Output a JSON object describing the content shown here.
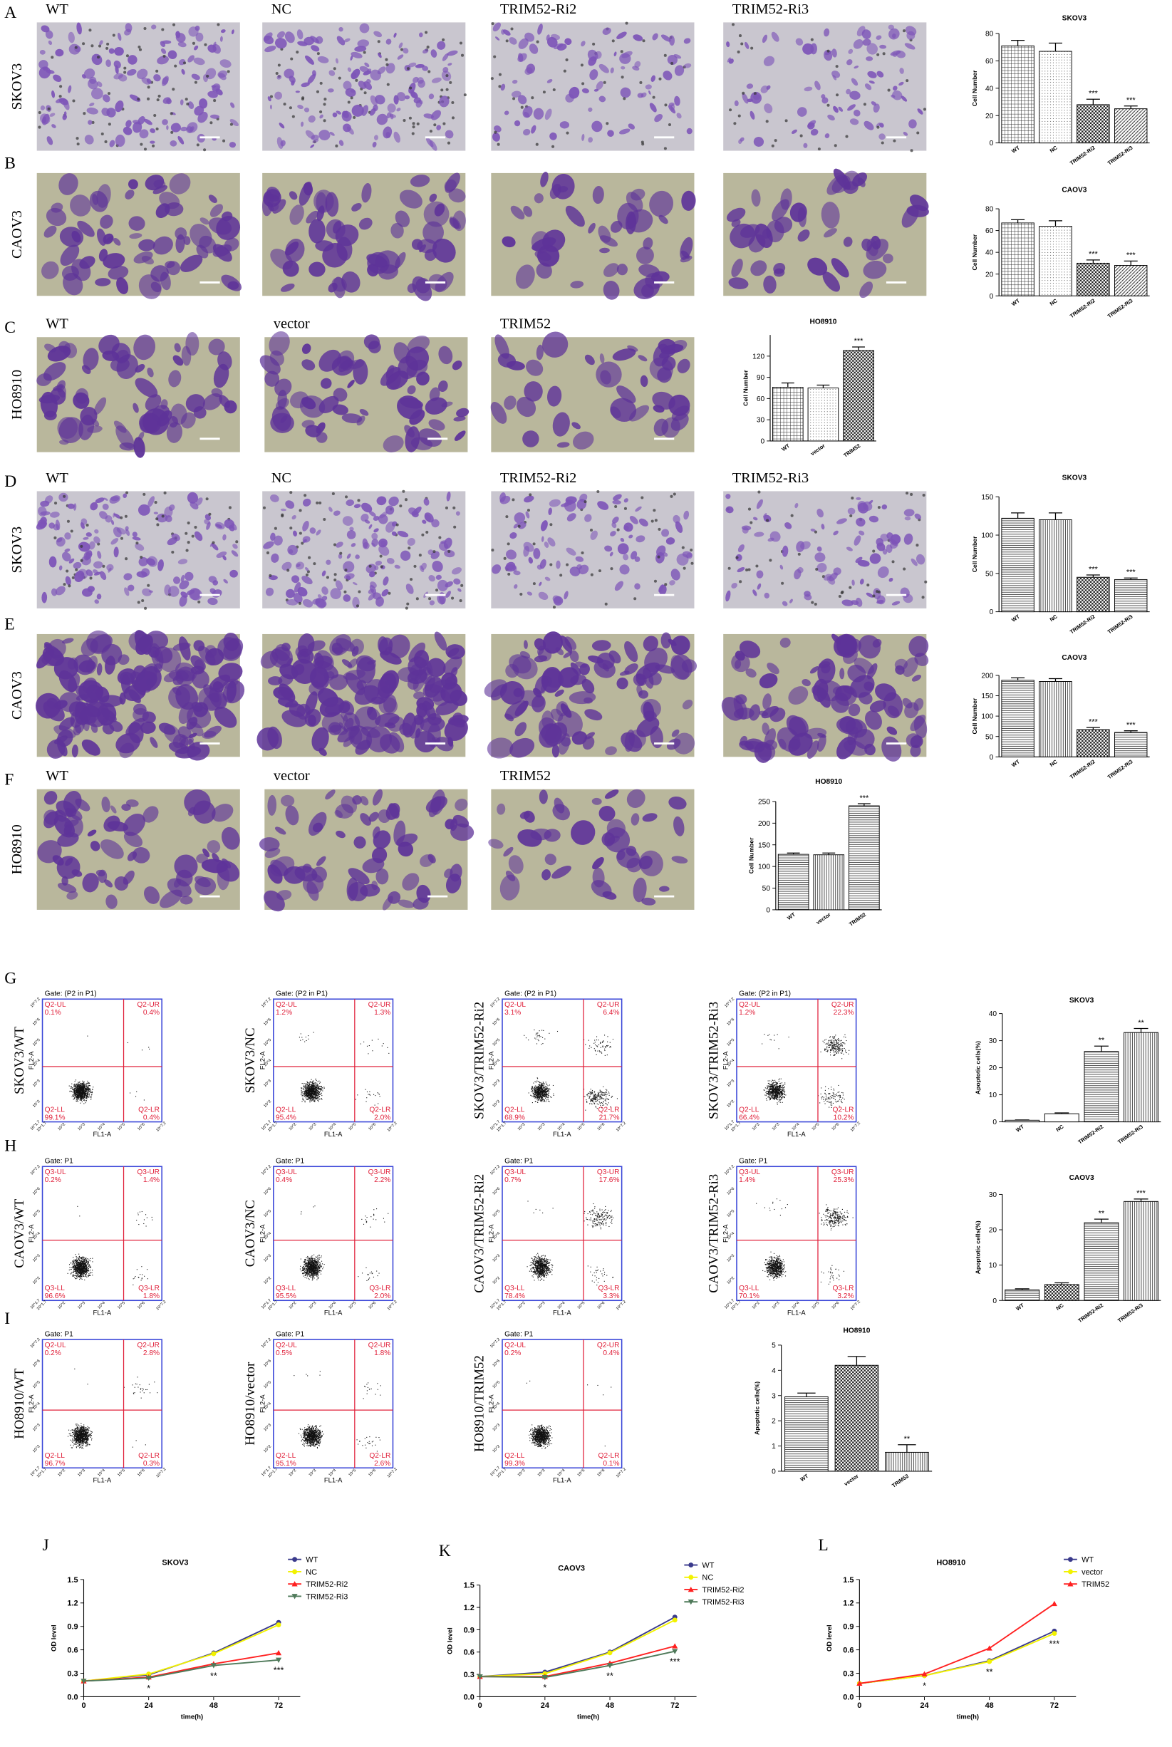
{
  "image_rows": [
    {
      "panel": "A",
      "cell_line": "SKOV3",
      "conditions": [
        "WT",
        "NC",
        "TRIM52-Ri2",
        "TRIM52-Ri3"
      ]
    },
    {
      "panel": "B",
      "cell_line": "CAOV3",
      "conditions": [
        null,
        null,
        null,
        null
      ]
    },
    {
      "panel": "C",
      "cell_line": "HO8910",
      "conditions": [
        "WT",
        "vector",
        "TRIM52"
      ]
    },
    {
      "panel": "D",
      "cell_line": "SKOV3",
      "conditions": [
        "WT",
        "NC",
        "TRIM52-Ri2",
        "TRIM52-Ri3"
      ]
    },
    {
      "panel": "E",
      "cell_line": "CAOV3",
      "conditions": [
        null,
        null,
        null,
        null
      ]
    },
    {
      "panel": "F",
      "cell_line": "HO8910",
      "conditions": [
        "WT",
        "vector",
        "TRIM52"
      ]
    }
  ],
  "flow_axis_ticks": [
    "10^1.7",
    "10^2",
    "10^3",
    "10^4",
    "10^5",
    "10^6",
    "10^7.2"
  ],
  "flow_x_label": "FL1-A",
  "flow_y_label": "FL2-A",
  "flow_rows": [
    {
      "panel": "G",
      "plots": [
        {
          "label": "SKOV3/WT",
          "gate": "Gate: (P2 in P1)",
          "quadrants": [
            [
              "Q2-UL",
              "0.1%"
            ],
            [
              "Q2-UR",
              "0.4%"
            ],
            [
              "Q2-LL",
              "99.1%"
            ],
            [
              "Q2-LR",
              "0.4%"
            ]
          ]
        },
        {
          "label": "SKOV3/NC",
          "gate": "Gate: (P2 in P1)",
          "quadrants": [
            [
              "Q2-UL",
              "1.2%"
            ],
            [
              "Q2-UR",
              "1.3%"
            ],
            [
              "Q2-LL",
              "95.4%"
            ],
            [
              "Q2-LR",
              "2.0%"
            ]
          ]
        },
        {
          "label": "SKOV3/TRIM52-Ri2",
          "gate": "Gate: (P2 in P1)",
          "quadrants": [
            [
              "Q2-UL",
              "3.1%"
            ],
            [
              "Q2-UR",
              "6.4%"
            ],
            [
              "Q2-LL",
              "68.9%"
            ],
            [
              "Q2-LR",
              "21.7%"
            ]
          ]
        },
        {
          "label": "SKOV3/TRIM52-Ri3",
          "gate": "Gate: (P2 in P1)",
          "quadrants": [
            [
              "Q2-UL",
              "1.2%"
            ],
            [
              "Q2-UR",
              "22.3%"
            ],
            [
              "Q2-LL",
              "66.4%"
            ],
            [
              "Q2-LR",
              "10.2%"
            ]
          ]
        }
      ]
    },
    {
      "panel": "H",
      "plots": [
        {
          "label": "CAOV3/WT",
          "gate": "Gate: P1",
          "quadrants": [
            [
              "Q3-UL",
              "0.2%"
            ],
            [
              "Q3-UR",
              "1.4%"
            ],
            [
              "Q3-LL",
              "96.6%"
            ],
            [
              "Q3-LR",
              "1.8%"
            ]
          ]
        },
        {
          "label": "CAOV3/NC",
          "gate": "Gate: P1",
          "quadrants": [
            [
              "Q3-UL",
              "0.4%"
            ],
            [
              "Q3-UR",
              "2.2%"
            ],
            [
              "Q3-LL",
              "95.5%"
            ],
            [
              "Q3-LR",
              "2.0%"
            ]
          ]
        },
        {
          "label": "CAOV3/TRIM52-Ri2",
          "gate": "Gate: P1",
          "quadrants": [
            [
              "Q3-UL",
              "0.7%"
            ],
            [
              "Q3-UR",
              "17.6%"
            ],
            [
              "Q3-LL",
              "78.4%"
            ],
            [
              "Q3-LR",
              "3.3%"
            ]
          ]
        },
        {
          "label": "CAOV3/TRIM52-Ri3",
          "gate": "Gate: P1",
          "quadrants": [
            [
              "Q3-UL",
              "1.4%"
            ],
            [
              "Q3-UR",
              "25.3%"
            ],
            [
              "Q3-LL",
              "70.1%"
            ],
            [
              "Q3-LR",
              "3.2%"
            ]
          ]
        }
      ]
    },
    {
      "panel": "I",
      "plots": [
        {
          "label": "HO8910/WT",
          "gate": "Gate:  P1",
          "quadrants": [
            [
              "Q2-UL",
              "0.2%"
            ],
            [
              "Q2-UR",
              "2.8%"
            ],
            [
              "Q2-LL",
              "96.7%"
            ],
            [
              "Q2-LR",
              "0.3%"
            ]
          ]
        },
        {
          "label": "HO8910/vector",
          "gate": "Gate:  P1",
          "quadrants": [
            [
              "Q2-UL",
              "0.5%"
            ],
            [
              "Q2-UR",
              "1.8%"
            ],
            [
              "Q2-LL",
              "95.1%"
            ],
            [
              "Q2-LR",
              "2.6%"
            ]
          ]
        },
        {
          "label": "HO8910/TRIM52",
          "gate": "Gate:  P1",
          "quadrants": [
            [
              "Q2-UL",
              "0.2%"
            ],
            [
              "Q2-UR",
              "0.4%"
            ],
            [
              "Q2-LL",
              "99.3%"
            ],
            [
              "Q2-LR",
              "0.1%"
            ]
          ]
        }
      ]
    }
  ],
  "chart_data": [
    {
      "type": "bar",
      "title": "SKOV3",
      "y_label": "Cell Number",
      "categories": [
        "WT",
        "NC",
        "TRIM52-Ri2",
        "TRIM52-Ri3"
      ],
      "values": [
        71,
        67,
        28,
        25
      ],
      "errors": [
        4,
        6,
        4,
        2
      ],
      "annotations": [
        null,
        null,
        "***",
        "***"
      ],
      "patterns": [
        "grid",
        "dots",
        "checker",
        "diag"
      ],
      "ylim": [
        0,
        80
      ],
      "yticks": [
        0,
        20,
        40,
        60,
        80
      ]
    },
    {
      "type": "bar",
      "title": "CAOV3",
      "y_label": "Cell Number",
      "categories": [
        "WT",
        "NC",
        "TRIM52-Ri2",
        "TRIM52-Ri3"
      ],
      "values": [
        67,
        64,
        30,
        28
      ],
      "errors": [
        3,
        5,
        3,
        4
      ],
      "annotations": [
        null,
        null,
        "***",
        "***"
      ],
      "patterns": [
        "grid",
        "dots",
        "checker",
        "diag"
      ],
      "ylim": [
        0,
        80
      ],
      "yticks": [
        0,
        20,
        40,
        60,
        80
      ]
    },
    {
      "type": "bar",
      "title": "HO8910",
      "y_label": "Cell Number",
      "categories": [
        "WT",
        "vector",
        "TRIM52"
      ],
      "values": [
        76,
        75,
        128
      ],
      "errors": [
        6,
        4,
        5
      ],
      "annotations": [
        null,
        null,
        "***"
      ],
      "patterns": [
        "grid",
        "dots",
        "checker"
      ],
      "ylim": [
        0,
        150
      ],
      "yticks": [
        0,
        30,
        60,
        90,
        120
      ]
    },
    {
      "type": "bar",
      "title": "SKOV3",
      "y_label": "Cell Number",
      "categories": [
        "WT",
        "NC",
        "TRIM52-Ri2",
        "TRIM52-Ri3"
      ],
      "values": [
        122,
        120,
        45,
        42
      ],
      "errors": [
        7,
        9,
        3,
        2
      ],
      "annotations": [
        null,
        null,
        "***",
        "***"
      ],
      "patterns": [
        "hlines",
        "vlines",
        "checker",
        "hlines"
      ],
      "ylim": [
        0,
        150
      ],
      "yticks": [
        0,
        50,
        100,
        150
      ]
    },
    {
      "type": "bar",
      "title": "CAOV3",
      "y_label": "Cell Number",
      "categories": [
        "WT",
        "NC",
        "TRIM52-Ri2",
        "TRIM52-Ri3"
      ],
      "values": [
        188,
        185,
        67,
        60
      ],
      "errors": [
        6,
        7,
        5,
        4
      ],
      "annotations": [
        null,
        null,
        "***",
        "***"
      ],
      "patterns": [
        "hlines",
        "vlines",
        "checker",
        "hlines"
      ],
      "ylim": [
        0,
        200
      ],
      "yticks": [
        0,
        50,
        100,
        150,
        200
      ]
    },
    {
      "type": "bar",
      "title": "HO8910",
      "y_label": "Cell Number",
      "categories": [
        "WT",
        "vector",
        "TRIM52"
      ],
      "values": [
        128,
        127,
        240
      ],
      "errors": [
        3,
        4,
        5
      ],
      "annotations": [
        null,
        null,
        "***"
      ],
      "patterns": [
        "hlines",
        "vlines",
        "hlines"
      ],
      "ylim": [
        0,
        250
      ],
      "yticks": [
        0,
        50,
        100,
        150,
        200,
        250
      ]
    },
    {
      "type": "bar",
      "title": "SKOV3",
      "y_label": "Apoptotic cells(%)",
      "categories": [
        "WT",
        "NC",
        "TRIM52-Ri2",
        "TRIM52-Ri3"
      ],
      "values": [
        0.6,
        3,
        26,
        33
      ],
      "errors": [
        0.1,
        0.3,
        2,
        1.5
      ],
      "annotations": [
        null,
        null,
        "**",
        "**"
      ],
      "patterns": [
        "white",
        "white",
        "hlines",
        "vlines"
      ],
      "ylim": [
        0,
        40
      ],
      "yticks": [
        0,
        10,
        20,
        30,
        40
      ]
    },
    {
      "type": "bar",
      "title": "CAOV3",
      "y_label": "Apoptotic cells(%)",
      "categories": [
        "WT",
        "NC",
        "TRIM52-Ri2",
        "TRIM52-Ri3"
      ],
      "values": [
        3,
        4.5,
        22,
        28
      ],
      "errors": [
        0.3,
        0.5,
        1,
        0.7
      ],
      "annotations": [
        null,
        null,
        "**",
        "***"
      ],
      "patterns": [
        "hlines",
        "checker",
        "hlines",
        "vlines"
      ],
      "ylim": [
        0,
        30
      ],
      "yticks": [
        0,
        10,
        20,
        30
      ]
    },
    {
      "type": "bar",
      "title": "HO8910",
      "y_label": "Apoptotic cells(%)",
      "categories": [
        "WT",
        "vector",
        "TRIM52"
      ],
      "values": [
        2.95,
        4.2,
        0.75
      ],
      "errors": [
        0.15,
        0.35,
        0.3
      ],
      "annotations": [
        null,
        null,
        "**"
      ],
      "patterns": [
        "hlines",
        "checker",
        "vlines"
      ],
      "ylim": [
        0,
        5
      ],
      "yticks": [
        0,
        1,
        2,
        3,
        4,
        5
      ]
    },
    {
      "type": "line",
      "panel": "J",
      "title": "SKOV3",
      "x_label": "time(h)",
      "y_label": "OD level",
      "x": [
        0,
        24,
        48,
        72
      ],
      "xlim": [
        0,
        80
      ],
      "xticks": [
        0,
        24,
        48,
        72
      ],
      "ylim": [
        0,
        1.5
      ],
      "yticks": [
        {
          "value": 0,
          "label": "0.0"
        },
        0.3,
        0.6,
        0.9,
        1.2,
        1.5
      ],
      "annotations": [
        null,
        "*",
        "**",
        "***"
      ],
      "series": [
        {
          "name": "WT",
          "color": "#3a3a8c",
          "marker": "circle",
          "values": [
            0.2,
            0.28,
            0.56,
            0.95
          ]
        },
        {
          "name": "NC",
          "color": "#f2f200",
          "marker": "circle",
          "values": [
            0.2,
            0.29,
            0.55,
            0.92
          ]
        },
        {
          "name": "TRIM52-Ri2",
          "color": "#ff2020",
          "marker": "triangle",
          "values": [
            0.2,
            0.25,
            0.42,
            0.56
          ]
        },
        {
          "name": "TRIM52-Ri3",
          "color": "#4f7a5a",
          "marker": "triangle-down",
          "values": [
            0.2,
            0.24,
            0.4,
            0.47
          ]
        }
      ]
    },
    {
      "type": "line",
      "panel": "K",
      "title": "CAOV3",
      "x_label": "time(h)",
      "y_label": "OD level",
      "x": [
        0,
        24,
        48,
        72
      ],
      "xlim": [
        0,
        80
      ],
      "xticks": [
        0,
        24,
        48,
        72
      ],
      "ylim": [
        0,
        1.5
      ],
      "yticks": [
        {
          "value": 0,
          "label": "0.0"
        },
        0.3,
        0.6,
        0.9,
        1.2,
        1.5
      ],
      "annotations": [
        null,
        "*",
        "**",
        "***"
      ],
      "series": [
        {
          "name": "WT",
          "color": "#3a3a8c",
          "marker": "circle",
          "values": [
            0.27,
            0.33,
            0.6,
            1.07
          ]
        },
        {
          "name": "NC",
          "color": "#f2f200",
          "marker": "circle",
          "values": [
            0.27,
            0.31,
            0.59,
            1.03
          ]
        },
        {
          "name": "TRIM52-Ri2",
          "color": "#ff2020",
          "marker": "triangle",
          "values": [
            0.27,
            0.27,
            0.45,
            0.68
          ]
        },
        {
          "name": "TRIM52-Ri3",
          "color": "#4f7a5a",
          "marker": "triangle-down",
          "values": [
            0.27,
            0.26,
            0.42,
            0.61
          ]
        }
      ]
    },
    {
      "type": "line",
      "panel": "L",
      "title": "HO8910",
      "x_label": "time(h)",
      "y_label": "OD level",
      "x": [
        0,
        24,
        48,
        72
      ],
      "xlim": [
        0,
        80
      ],
      "xticks": [
        0,
        24,
        48,
        72
      ],
      "ylim": [
        0,
        1.5
      ],
      "yticks": [
        {
          "value": 0,
          "label": "0.0"
        },
        0.3,
        0.6,
        0.9,
        1.2,
        1.5
      ],
      "annotations": [
        null,
        "*",
        "**",
        "***"
      ],
      "series": [
        {
          "name": "WT",
          "color": "#3a3a8c",
          "marker": "circle",
          "values": [
            0.17,
            0.27,
            0.46,
            0.84
          ]
        },
        {
          "name": "vector",
          "color": "#f2f200",
          "marker": "circle",
          "values": [
            0.17,
            0.27,
            0.45,
            0.81
          ]
        },
        {
          "name": "TRIM52",
          "color": "#ff2020",
          "marker": "triangle",
          "values": [
            0.17,
            0.29,
            0.62,
            1.19
          ]
        }
      ]
    }
  ]
}
